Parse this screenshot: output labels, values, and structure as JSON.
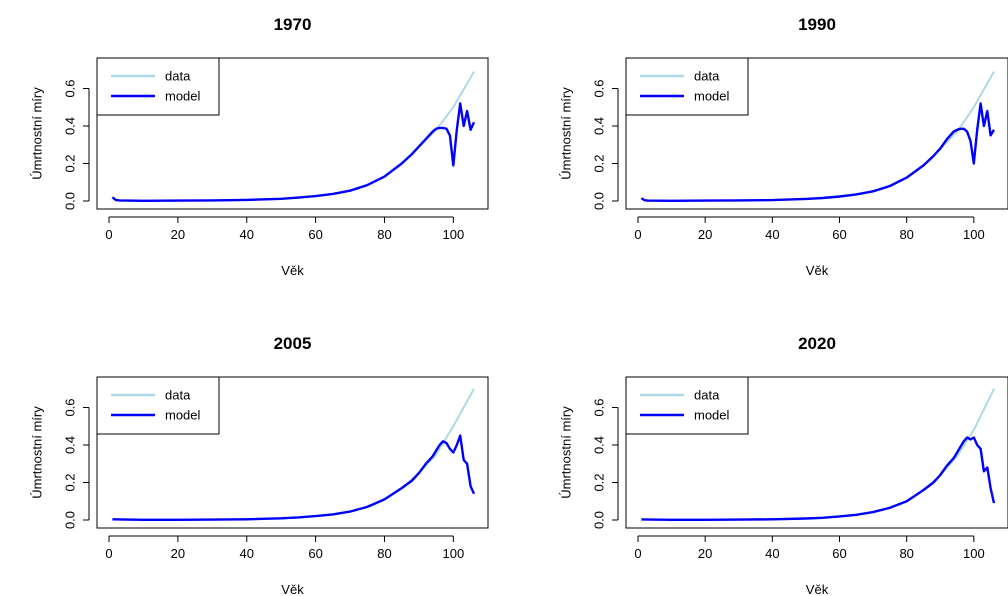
{
  "figure": {
    "background": "#ffffff"
  },
  "colors": {
    "data": "#add8e6",
    "model": "#0000ff",
    "axis": "#000000"
  },
  "chart_data": [
    {
      "type": "line",
      "title": "1970",
      "xlabel": "Věk",
      "ylabel": "Úmrtnostní míry",
      "xlim": [
        0,
        106
      ],
      "ylim": [
        0,
        0.72
      ],
      "xticks": [
        0,
        20,
        40,
        60,
        80,
        100
      ],
      "xtick_labels": [
        "0",
        "20",
        "40",
        "60",
        "80",
        "100"
      ],
      "yticks": [
        0,
        0.2,
        0.4,
        0.6
      ],
      "ytick_labels": [
        "0.0",
        "0.2",
        "0.4",
        "0.6"
      ],
      "legend": {
        "position": "top-left",
        "entries": [
          "data",
          "model"
        ]
      },
      "grid": false,
      "series": [
        {
          "name": "data",
          "color": "#add8e6",
          "x": [
            1,
            2,
            3,
            10,
            20,
            30,
            40,
            50,
            55,
            60,
            65,
            70,
            75,
            80,
            85,
            90,
            95,
            100,
            106
          ],
          "y": [
            0.02,
            0.005,
            0.003,
            0.001,
            0.002,
            0.003,
            0.006,
            0.012,
            0.018,
            0.026,
            0.038,
            0.055,
            0.085,
            0.13,
            0.2,
            0.29,
            0.38,
            0.5,
            0.69
          ]
        },
        {
          "name": "model",
          "color": "#0000ff",
          "x": [
            1,
            2,
            3,
            10,
            20,
            30,
            40,
            50,
            55,
            60,
            65,
            70,
            75,
            80,
            85,
            88,
            90,
            92,
            94,
            95,
            96,
            97,
            98,
            99,
            100,
            101,
            102,
            103,
            104,
            105,
            106
          ],
          "y": [
            0.02,
            0.005,
            0.003,
            0.001,
            0.002,
            0.003,
            0.006,
            0.012,
            0.018,
            0.026,
            0.038,
            0.055,
            0.085,
            0.13,
            0.2,
            0.25,
            0.29,
            0.33,
            0.37,
            0.385,
            0.39,
            0.39,
            0.385,
            0.35,
            0.19,
            0.38,
            0.52,
            0.4,
            0.48,
            0.38,
            0.42
          ]
        }
      ]
    },
    {
      "type": "line",
      "title": "1990",
      "xlabel": "Věk",
      "ylabel": "Úmrtnostní míry",
      "xlim": [
        0,
        106
      ],
      "ylim": [
        0,
        0.72
      ],
      "xticks": [
        0,
        20,
        40,
        60,
        80,
        100
      ],
      "xtick_labels": [
        "0",
        "20",
        "40",
        "60",
        "80",
        "100"
      ],
      "yticks": [
        0,
        0.2,
        0.4,
        0.6
      ],
      "ytick_labels": [
        "0.0",
        "0.2",
        "0.4",
        "0.6"
      ],
      "legend": {
        "position": "top-left",
        "entries": [
          "data",
          "model"
        ]
      },
      "grid": false,
      "series": [
        {
          "name": "data",
          "color": "#add8e6",
          "x": [
            1,
            2,
            3,
            10,
            20,
            30,
            40,
            50,
            55,
            60,
            65,
            70,
            75,
            80,
            85,
            90,
            95,
            100,
            106
          ],
          "y": [
            0.015,
            0.004,
            0.002,
            0.001,
            0.002,
            0.003,
            0.005,
            0.011,
            0.016,
            0.024,
            0.035,
            0.052,
            0.08,
            0.125,
            0.19,
            0.28,
            0.37,
            0.5,
            0.69
          ]
        },
        {
          "name": "model",
          "color": "#0000ff",
          "x": [
            1,
            2,
            3,
            10,
            20,
            30,
            40,
            50,
            55,
            60,
            65,
            70,
            75,
            80,
            85,
            88,
            90,
            92,
            94,
            95,
            96,
            97,
            98,
            99,
            100,
            101,
            102,
            103,
            104,
            105,
            106
          ],
          "y": [
            0.015,
            0.004,
            0.002,
            0.001,
            0.002,
            0.003,
            0.005,
            0.011,
            0.016,
            0.024,
            0.035,
            0.052,
            0.08,
            0.125,
            0.19,
            0.24,
            0.28,
            0.33,
            0.37,
            0.38,
            0.385,
            0.385,
            0.37,
            0.32,
            0.2,
            0.38,
            0.52,
            0.4,
            0.48,
            0.35,
            0.38
          ]
        }
      ]
    },
    {
      "type": "line",
      "title": "2005",
      "xlabel": "Věk",
      "ylabel": "Úmrtnostní míry",
      "xlim": [
        0,
        106
      ],
      "ylim": [
        0,
        0.72
      ],
      "xticks": [
        0,
        20,
        40,
        60,
        80,
        100
      ],
      "xtick_labels": [
        "0",
        "20",
        "40",
        "60",
        "80",
        "100"
      ],
      "yticks": [
        0,
        0.2,
        0.4,
        0.6
      ],
      "ytick_labels": [
        "0.0",
        "0.2",
        "0.4",
        "0.6"
      ],
      "legend": {
        "position": "top-left",
        "entries": [
          "data",
          "model"
        ]
      },
      "grid": false,
      "series": [
        {
          "name": "data",
          "color": "#add8e6",
          "x": [
            1,
            10,
            20,
            30,
            40,
            50,
            55,
            60,
            65,
            70,
            75,
            80,
            85,
            90,
            95,
            100,
            106
          ],
          "y": [
            0.004,
            0.001,
            0.001,
            0.002,
            0.004,
            0.009,
            0.014,
            0.021,
            0.03,
            0.045,
            0.07,
            0.11,
            0.17,
            0.25,
            0.35,
            0.5,
            0.7
          ]
        },
        {
          "name": "model",
          "color": "#0000ff",
          "x": [
            1,
            10,
            20,
            30,
            40,
            50,
            55,
            60,
            65,
            70,
            75,
            80,
            85,
            88,
            90,
            92,
            94,
            95,
            96,
            97,
            98,
            99,
            100,
            101,
            102,
            103,
            104,
            105,
            106
          ],
          "y": [
            0.004,
            0.001,
            0.001,
            0.002,
            0.004,
            0.009,
            0.014,
            0.021,
            0.03,
            0.045,
            0.07,
            0.11,
            0.17,
            0.21,
            0.25,
            0.3,
            0.34,
            0.37,
            0.4,
            0.42,
            0.41,
            0.38,
            0.36,
            0.4,
            0.45,
            0.32,
            0.3,
            0.18,
            0.14
          ]
        }
      ]
    },
    {
      "type": "line",
      "title": "2020",
      "xlabel": "Věk",
      "ylabel": "Úmrtnostní míry",
      "xlim": [
        0,
        106
      ],
      "ylim": [
        0,
        0.72
      ],
      "xticks": [
        0,
        20,
        40,
        60,
        80,
        100
      ],
      "xtick_labels": [
        "0",
        "20",
        "40",
        "60",
        "80",
        "100"
      ],
      "yticks": [
        0,
        0.2,
        0.4,
        0.6
      ],
      "ytick_labels": [
        "0.0",
        "0.2",
        "0.4",
        "0.6"
      ],
      "legend": {
        "position": "top-left",
        "entries": [
          "data",
          "model"
        ]
      },
      "grid": false,
      "series": [
        {
          "name": "data",
          "color": "#add8e6",
          "x": [
            1,
            10,
            20,
            30,
            40,
            50,
            55,
            60,
            65,
            70,
            75,
            80,
            85,
            90,
            95,
            100,
            106
          ],
          "y": [
            0.003,
            0.001,
            0.001,
            0.002,
            0.004,
            0.008,
            0.012,
            0.019,
            0.028,
            0.042,
            0.065,
            0.1,
            0.16,
            0.24,
            0.34,
            0.48,
            0.7
          ]
        },
        {
          "name": "model",
          "color": "#0000ff",
          "x": [
            1,
            10,
            20,
            30,
            40,
            50,
            55,
            60,
            65,
            70,
            75,
            80,
            85,
            88,
            90,
            92,
            94,
            95,
            96,
            97,
            98,
            99,
            100,
            101,
            102,
            103,
            104,
            105,
            106
          ],
          "y": [
            0.003,
            0.001,
            0.001,
            0.002,
            0.004,
            0.008,
            0.012,
            0.019,
            0.028,
            0.042,
            0.065,
            0.1,
            0.16,
            0.2,
            0.24,
            0.29,
            0.33,
            0.36,
            0.39,
            0.42,
            0.44,
            0.43,
            0.44,
            0.4,
            0.38,
            0.26,
            0.28,
            0.17,
            0.09
          ]
        }
      ]
    }
  ]
}
